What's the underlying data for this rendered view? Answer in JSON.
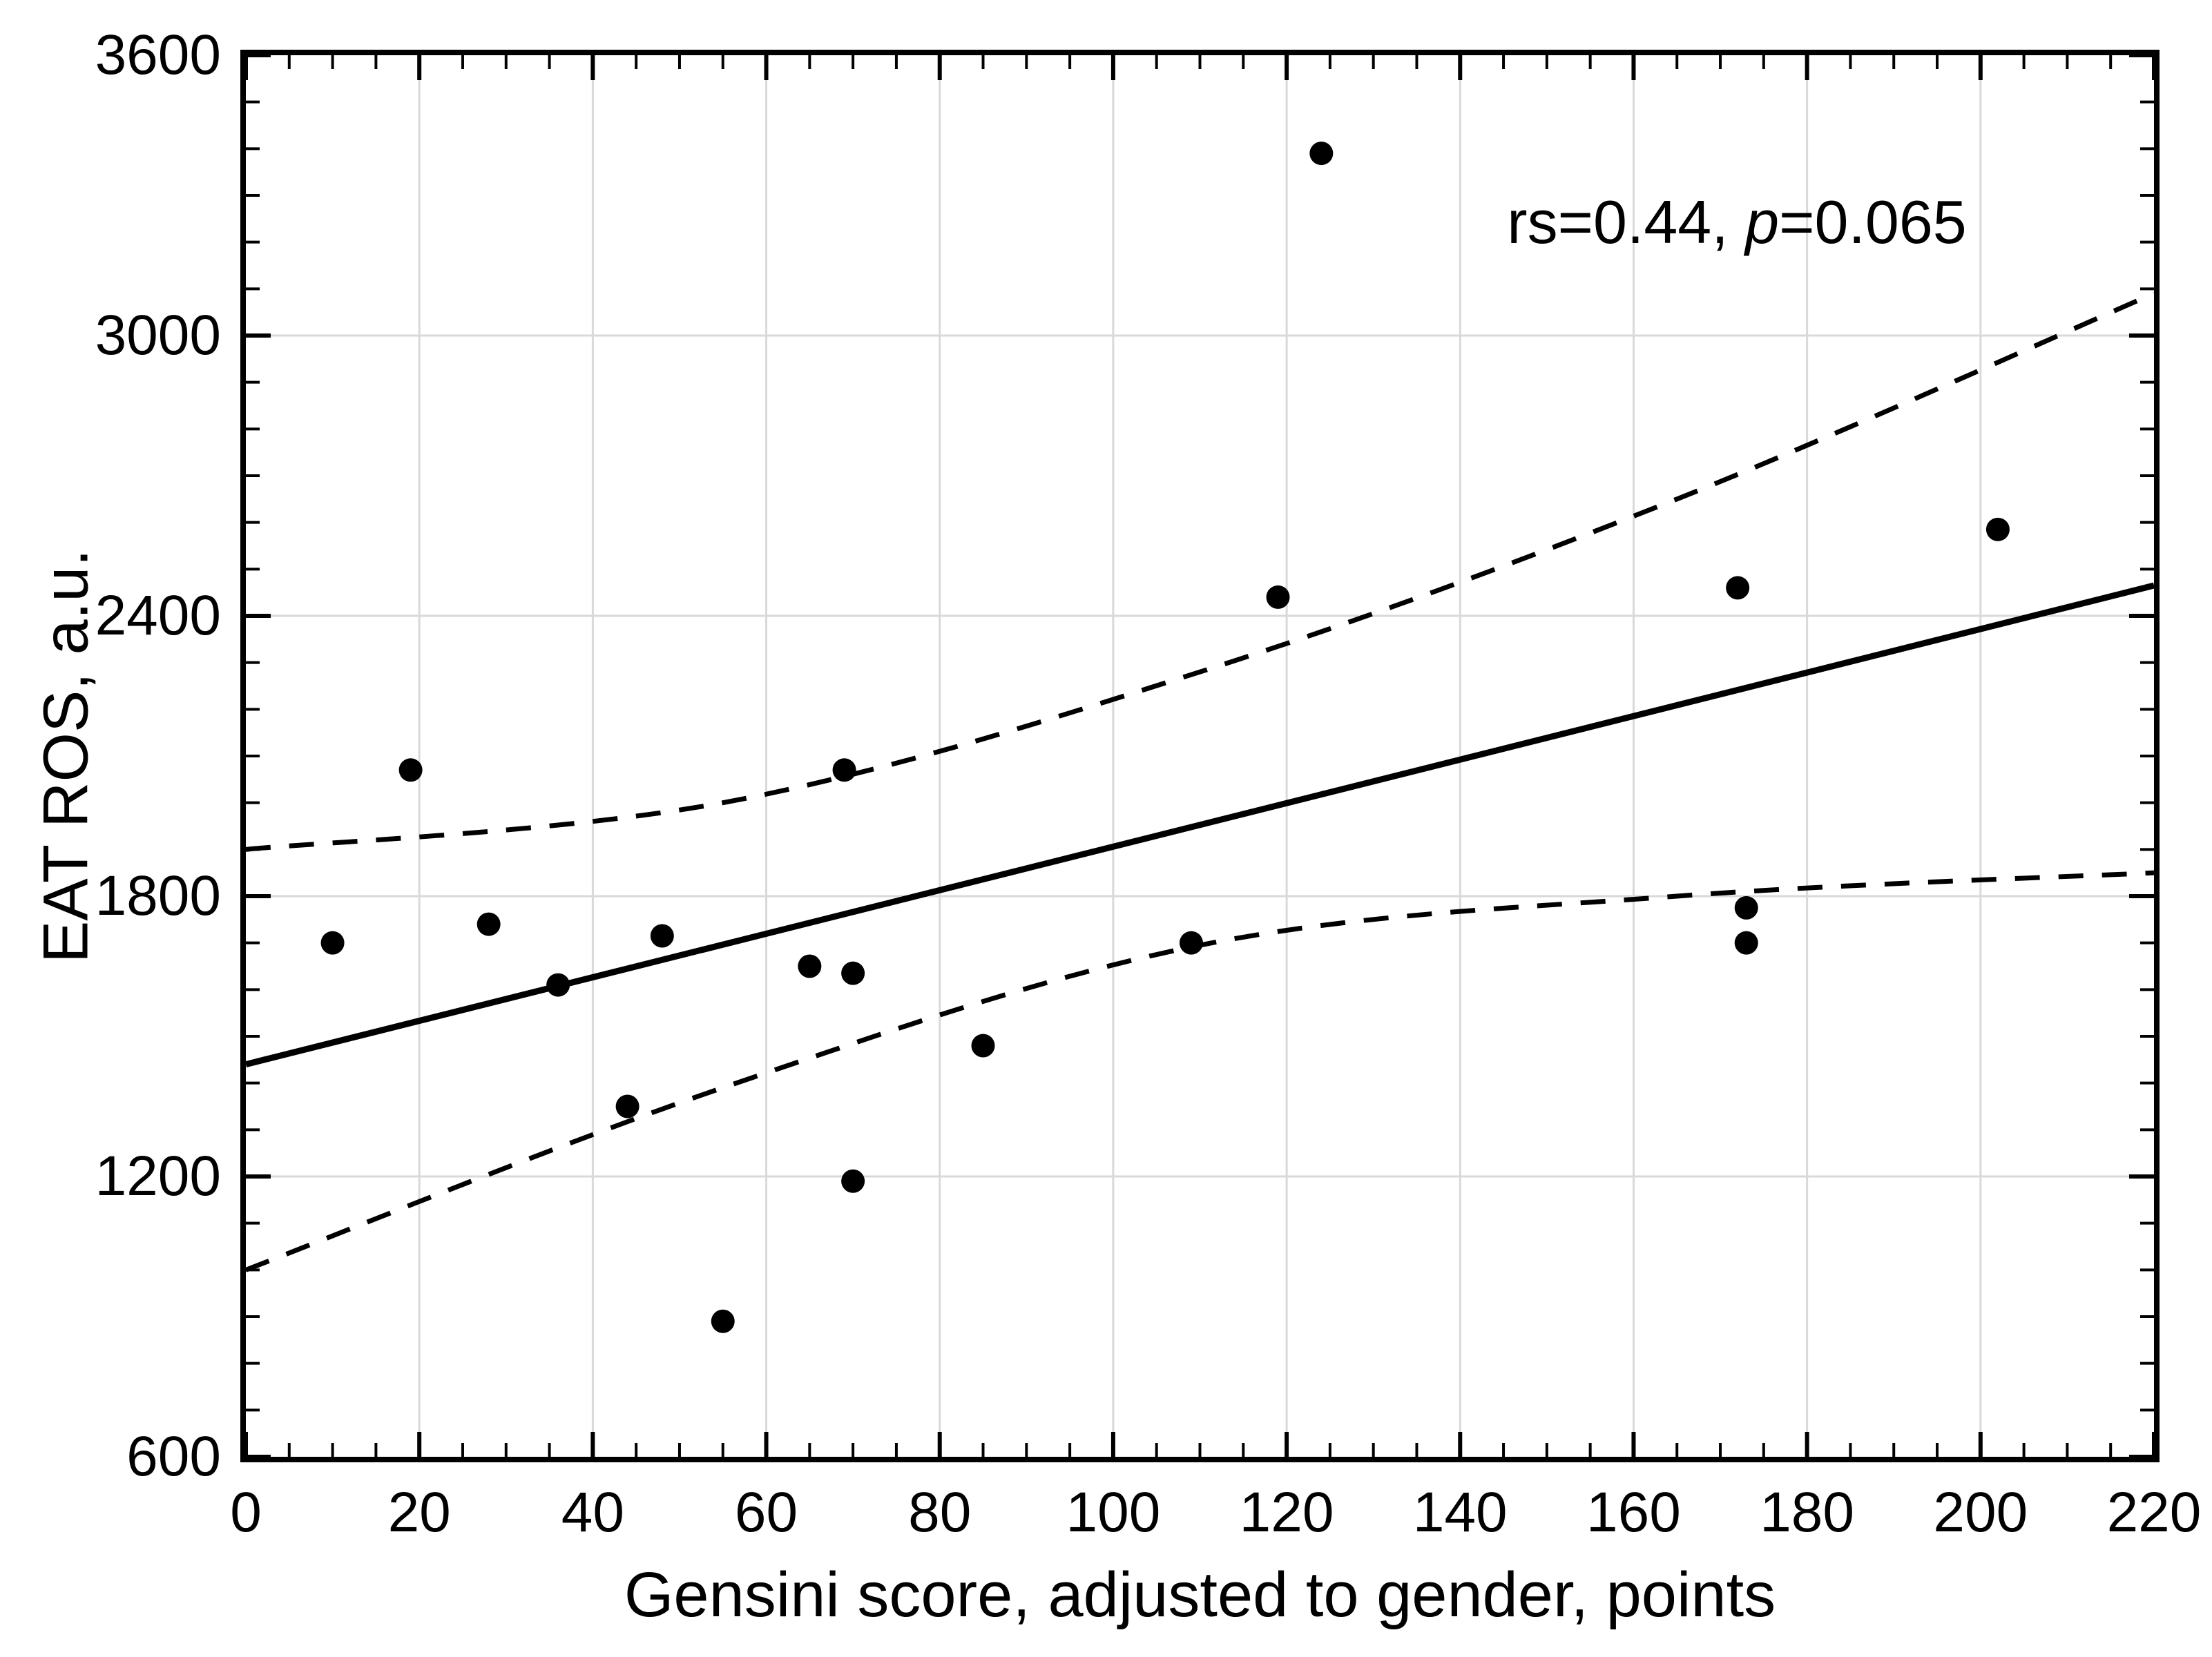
{
  "chart_data": {
    "type": "scatter",
    "title": "",
    "xlabel": "Gensini score, adjusted to gender, points",
    "ylabel": "EAT ROS, a.u.",
    "annotation": {
      "prefix": "rs=0.44, ",
      "italic": "p",
      "suffix": "=0.065"
    },
    "xlim": [
      0,
      220
    ],
    "ylim": [
      600,
      3600
    ],
    "x_major_step": 20,
    "x_minor_step": 5,
    "y_major_step": 600,
    "y_minor_step": 100,
    "x_tick_labels": [
      0,
      20,
      40,
      60,
      80,
      100,
      120,
      140,
      160,
      180,
      200,
      220
    ],
    "y_tick_labels": [
      600,
      1200,
      1800,
      2400,
      3000,
      3600
    ],
    "grid": "on",
    "legend": "none",
    "points": [
      [
        10,
        1700
      ],
      [
        19,
        2070
      ],
      [
        28,
        1740
      ],
      [
        36,
        1610
      ],
      [
        44,
        1350
      ],
      [
        48,
        1715
      ],
      [
        55,
        890
      ],
      [
        65,
        1650
      ],
      [
        69,
        2070
      ],
      [
        70,
        1635
      ],
      [
        70,
        1190
      ],
      [
        85,
        1480
      ],
      [
        109,
        1700
      ],
      [
        119,
        2440
      ],
      [
        124,
        3390
      ],
      [
        172,
        2460
      ],
      [
        173,
        1775
      ],
      [
        173,
        1700
      ],
      [
        202,
        2585
      ]
    ],
    "regression_line": {
      "x": [
        0,
        220
      ],
      "y": [
        1440,
        2465
      ]
    },
    "ci_upper_dashed": [
      [
        0,
        1900
      ],
      [
        55,
        2000
      ],
      [
        110,
        2280
      ],
      [
        165,
        2650
      ],
      [
        220,
        3090
      ]
    ],
    "ci_lower_dashed": [
      [
        0,
        1000
      ],
      [
        55,
        1390
      ],
      [
        110,
        1695
      ],
      [
        165,
        1800
      ],
      [
        220,
        1850
      ]
    ],
    "colors": {
      "point": "#000000",
      "line": "#000000",
      "grid": "#d9d9d9",
      "axis": "#000000",
      "background": "#ffffff"
    }
  }
}
